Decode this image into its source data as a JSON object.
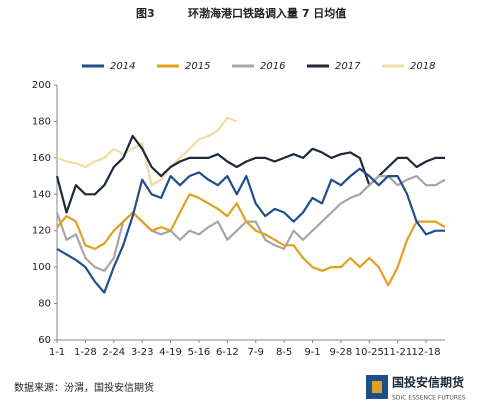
{
  "chart_data": {
    "type": "line",
    "figure_label": "图3",
    "title": "环渤海港口铁路调入量 7 日均值",
    "categories": [
      "1-1",
      null,
      null,
      "1-28",
      null,
      null,
      "2-24",
      null,
      null,
      "3-23",
      null,
      null,
      "4-19",
      null,
      null,
      "5-16",
      null,
      null,
      "6-12",
      null,
      null,
      "7-9",
      null,
      null,
      "8-5",
      null,
      null,
      "9-1",
      null,
      null,
      "9-28",
      null,
      null,
      "10-25",
      null,
      null,
      "11-21",
      null,
      null,
      "12-18",
      null,
      null
    ],
    "series": [
      {
        "name": "2014",
        "color": "#1f4e8c",
        "values": [
          110,
          107,
          104,
          100,
          92,
          86,
          100,
          112,
          128,
          148,
          140,
          138,
          150,
          145,
          150,
          152,
          148,
          145,
          150,
          140,
          150,
          135,
          128,
          132,
          130,
          125,
          130,
          138,
          135,
          148,
          145,
          150,
          154,
          150,
          145,
          150,
          150,
          140,
          125,
          118,
          120,
          120
        ]
      },
      {
        "name": "2015",
        "color": "#e0a020",
        "values": [
          122,
          128,
          125,
          112,
          110,
          113,
          120,
          125,
          130,
          125,
          120,
          122,
          120,
          130,
          140,
          138,
          135,
          132,
          128,
          135,
          125,
          120,
          118,
          115,
          112,
          112,
          105,
          100,
          98,
          100,
          100,
          105,
          100,
          105,
          100,
          90,
          100,
          115,
          125,
          125,
          125,
          122
        ]
      },
      {
        "name": "2016",
        "color": "#a6a6a6",
        "values": [
          130,
          115,
          118,
          105,
          100,
          98,
          105,
          125,
          130,
          125,
          120,
          118,
          120,
          115,
          120,
          118,
          122,
          125,
          115,
          120,
          125,
          125,
          115,
          112,
          110,
          120,
          115,
          120,
          125,
          130,
          135,
          138,
          140,
          145,
          150,
          150,
          145,
          148,
          150,
          145,
          145,
          148
        ]
      },
      {
        "name": "2017",
        "color": "#1b2a3a",
        "values": [
          150,
          130,
          145,
          140,
          140,
          145,
          155,
          160,
          172,
          165,
          155,
          150,
          155,
          158,
          160,
          160,
          160,
          162,
          158,
          155,
          158,
          160,
          160,
          158,
          160,
          162,
          160,
          165,
          163,
          160,
          162,
          163,
          160,
          145,
          150,
          155,
          160,
          160,
          155,
          158,
          160,
          160
        ]
      },
      {
        "name": "2018",
        "color": "#f2dca0",
        "values": [
          160,
          158,
          157,
          155,
          158,
          160,
          165,
          162,
          165,
          168,
          145,
          148,
          155,
          160,
          165,
          170,
          172,
          175,
          182,
          180,
          null,
          null,
          null,
          null,
          null,
          null,
          null,
          null,
          null,
          null,
          null,
          null,
          null,
          null,
          null,
          null,
          null,
          null,
          null,
          null,
          null,
          null
        ]
      }
    ],
    "ylim": [
      60,
      200
    ],
    "yticks": [
      60,
      80,
      100,
      120,
      140,
      160,
      180,
      200
    ],
    "grid": false
  },
  "source": "数据来源：汾渭，国投安信期货",
  "logo": {
    "name": "国投安信期货",
    "subtitle": "SDIC ESSENCE FUTURES"
  }
}
